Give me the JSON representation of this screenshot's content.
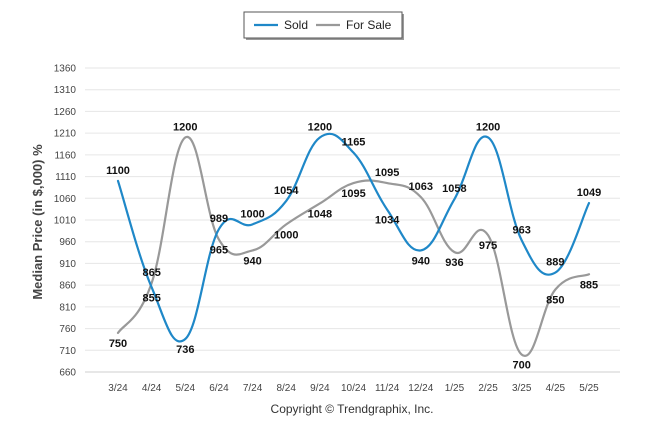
{
  "chart_data": {
    "type": "line",
    "categories": [
      "3/24",
      "4/24",
      "5/24",
      "6/24",
      "7/24",
      "8/24",
      "9/24",
      "10/24",
      "11/24",
      "12/24",
      "1/25",
      "2/25",
      "3/25",
      "4/25",
      "5/25"
    ],
    "series": [
      {
        "name": "Sold",
        "color": "#1f88c8",
        "values": [
          1100,
          855,
          736,
          989,
          1000,
          1054,
          1200,
          1165,
          1034,
          940,
          1058,
          1200,
          963,
          889,
          1049
        ]
      },
      {
        "name": "For Sale",
        "color": "#999999",
        "values": [
          750,
          865,
          1200,
          965,
          940,
          1000,
          1048,
          1095,
          1095,
          1063,
          936,
          975,
          700,
          850,
          885
        ]
      }
    ],
    "ylabel": "Median Price (in $,000) %",
    "xlabel": "",
    "ylim": [
      660,
      1360
    ],
    "yticks": [
      660,
      710,
      760,
      810,
      860,
      910,
      960,
      1010,
      1060,
      1110,
      1160,
      1210,
      1260,
      1310,
      1360
    ],
    "grid": true,
    "legend_position": "top-center"
  },
  "footer": {
    "copyright": "Copyright © Trendgraphix, Inc."
  }
}
